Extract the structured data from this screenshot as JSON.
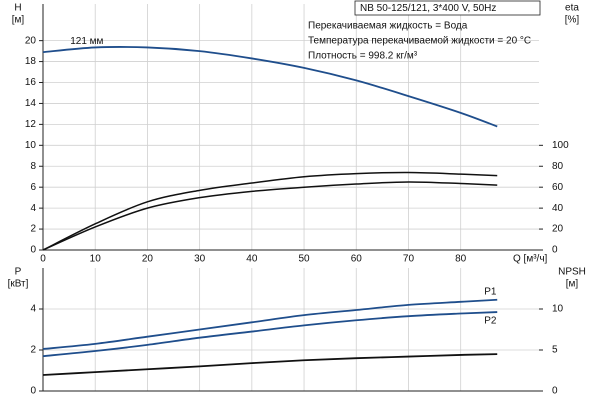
{
  "chart_data": [
    {
      "type": "line",
      "title": "NB 50-125/121, 3*400 V, 50Hz",
      "annotations": [
        "Перекачиваемая жидкость = Вода",
        "Температура перекачиваемой жидкости = 20 °C",
        "Плотность = 998.2 кг/м³"
      ],
      "xlabel": "Q [м³/ч]",
      "ylabel": "H",
      "yunit": "[м]",
      "y2label": "eta",
      "y2unit": "[%]",
      "x": [
        0,
        10,
        20,
        30,
        40,
        50,
        60,
        70,
        80,
        87
      ],
      "xlim": [
        0,
        95
      ],
      "xticks": [
        0,
        10,
        20,
        30,
        40,
        50,
        60,
        70,
        80
      ],
      "ylim": [
        0,
        23.5
      ],
      "yticks": [
        0,
        2,
        4,
        6,
        8,
        10,
        12,
        14,
        16,
        18,
        20
      ],
      "y2lim": [
        0,
        235
      ],
      "y2ticks": [
        0,
        20,
        40,
        60,
        80,
        100
      ],
      "grid": true,
      "series": [
        {
          "name": "121 мм",
          "color": "#1f4e8c",
          "values": [
            18.9,
            19.35,
            19.35,
            19.0,
            18.3,
            17.4,
            16.2,
            14.7,
            13.1,
            11.8
          ]
        },
        {
          "color": "#111111",
          "axis": "y2",
          "values": [
            0,
            25,
            46,
            57,
            64,
            70,
            73,
            74,
            72.5,
            71
          ]
        },
        {
          "color": "#111111",
          "axis": "y2",
          "values": [
            0,
            22,
            40,
            50,
            56,
            60,
            63,
            65,
            63.5,
            62
          ]
        }
      ]
    },
    {
      "type": "line",
      "ylabel": "P",
      "yunit": "[кВт]",
      "y2label": "NPSH",
      "y2unit": "[м]",
      "x": [
        0,
        10,
        20,
        30,
        40,
        50,
        60,
        70,
        80,
        87
      ],
      "xlim": [
        0,
        95
      ],
      "xticks": [
        0,
        10,
        20,
        30,
        40,
        50,
        60,
        70,
        80
      ],
      "ylim": [
        0,
        6
      ],
      "yticks": [
        0,
        2,
        4
      ],
      "y2lim": [
        0,
        15
      ],
      "y2ticks": [
        0,
        5,
        10
      ],
      "grid": true,
      "series": [
        {
          "name": "P1",
          "color": "#1f4e8c",
          "values": [
            2.05,
            2.3,
            2.65,
            3.0,
            3.35,
            3.7,
            3.95,
            4.2,
            4.35,
            4.45
          ]
        },
        {
          "name": "P2",
          "color": "#1f4e8c",
          "values": [
            1.7,
            1.95,
            2.25,
            2.6,
            2.9,
            3.2,
            3.45,
            3.65,
            3.78,
            3.85
          ]
        },
        {
          "color": "#111111",
          "axis": "y2",
          "values": [
            1.95,
            2.3,
            2.65,
            3.0,
            3.4,
            3.75,
            4.0,
            4.2,
            4.4,
            4.5
          ]
        }
      ]
    }
  ]
}
